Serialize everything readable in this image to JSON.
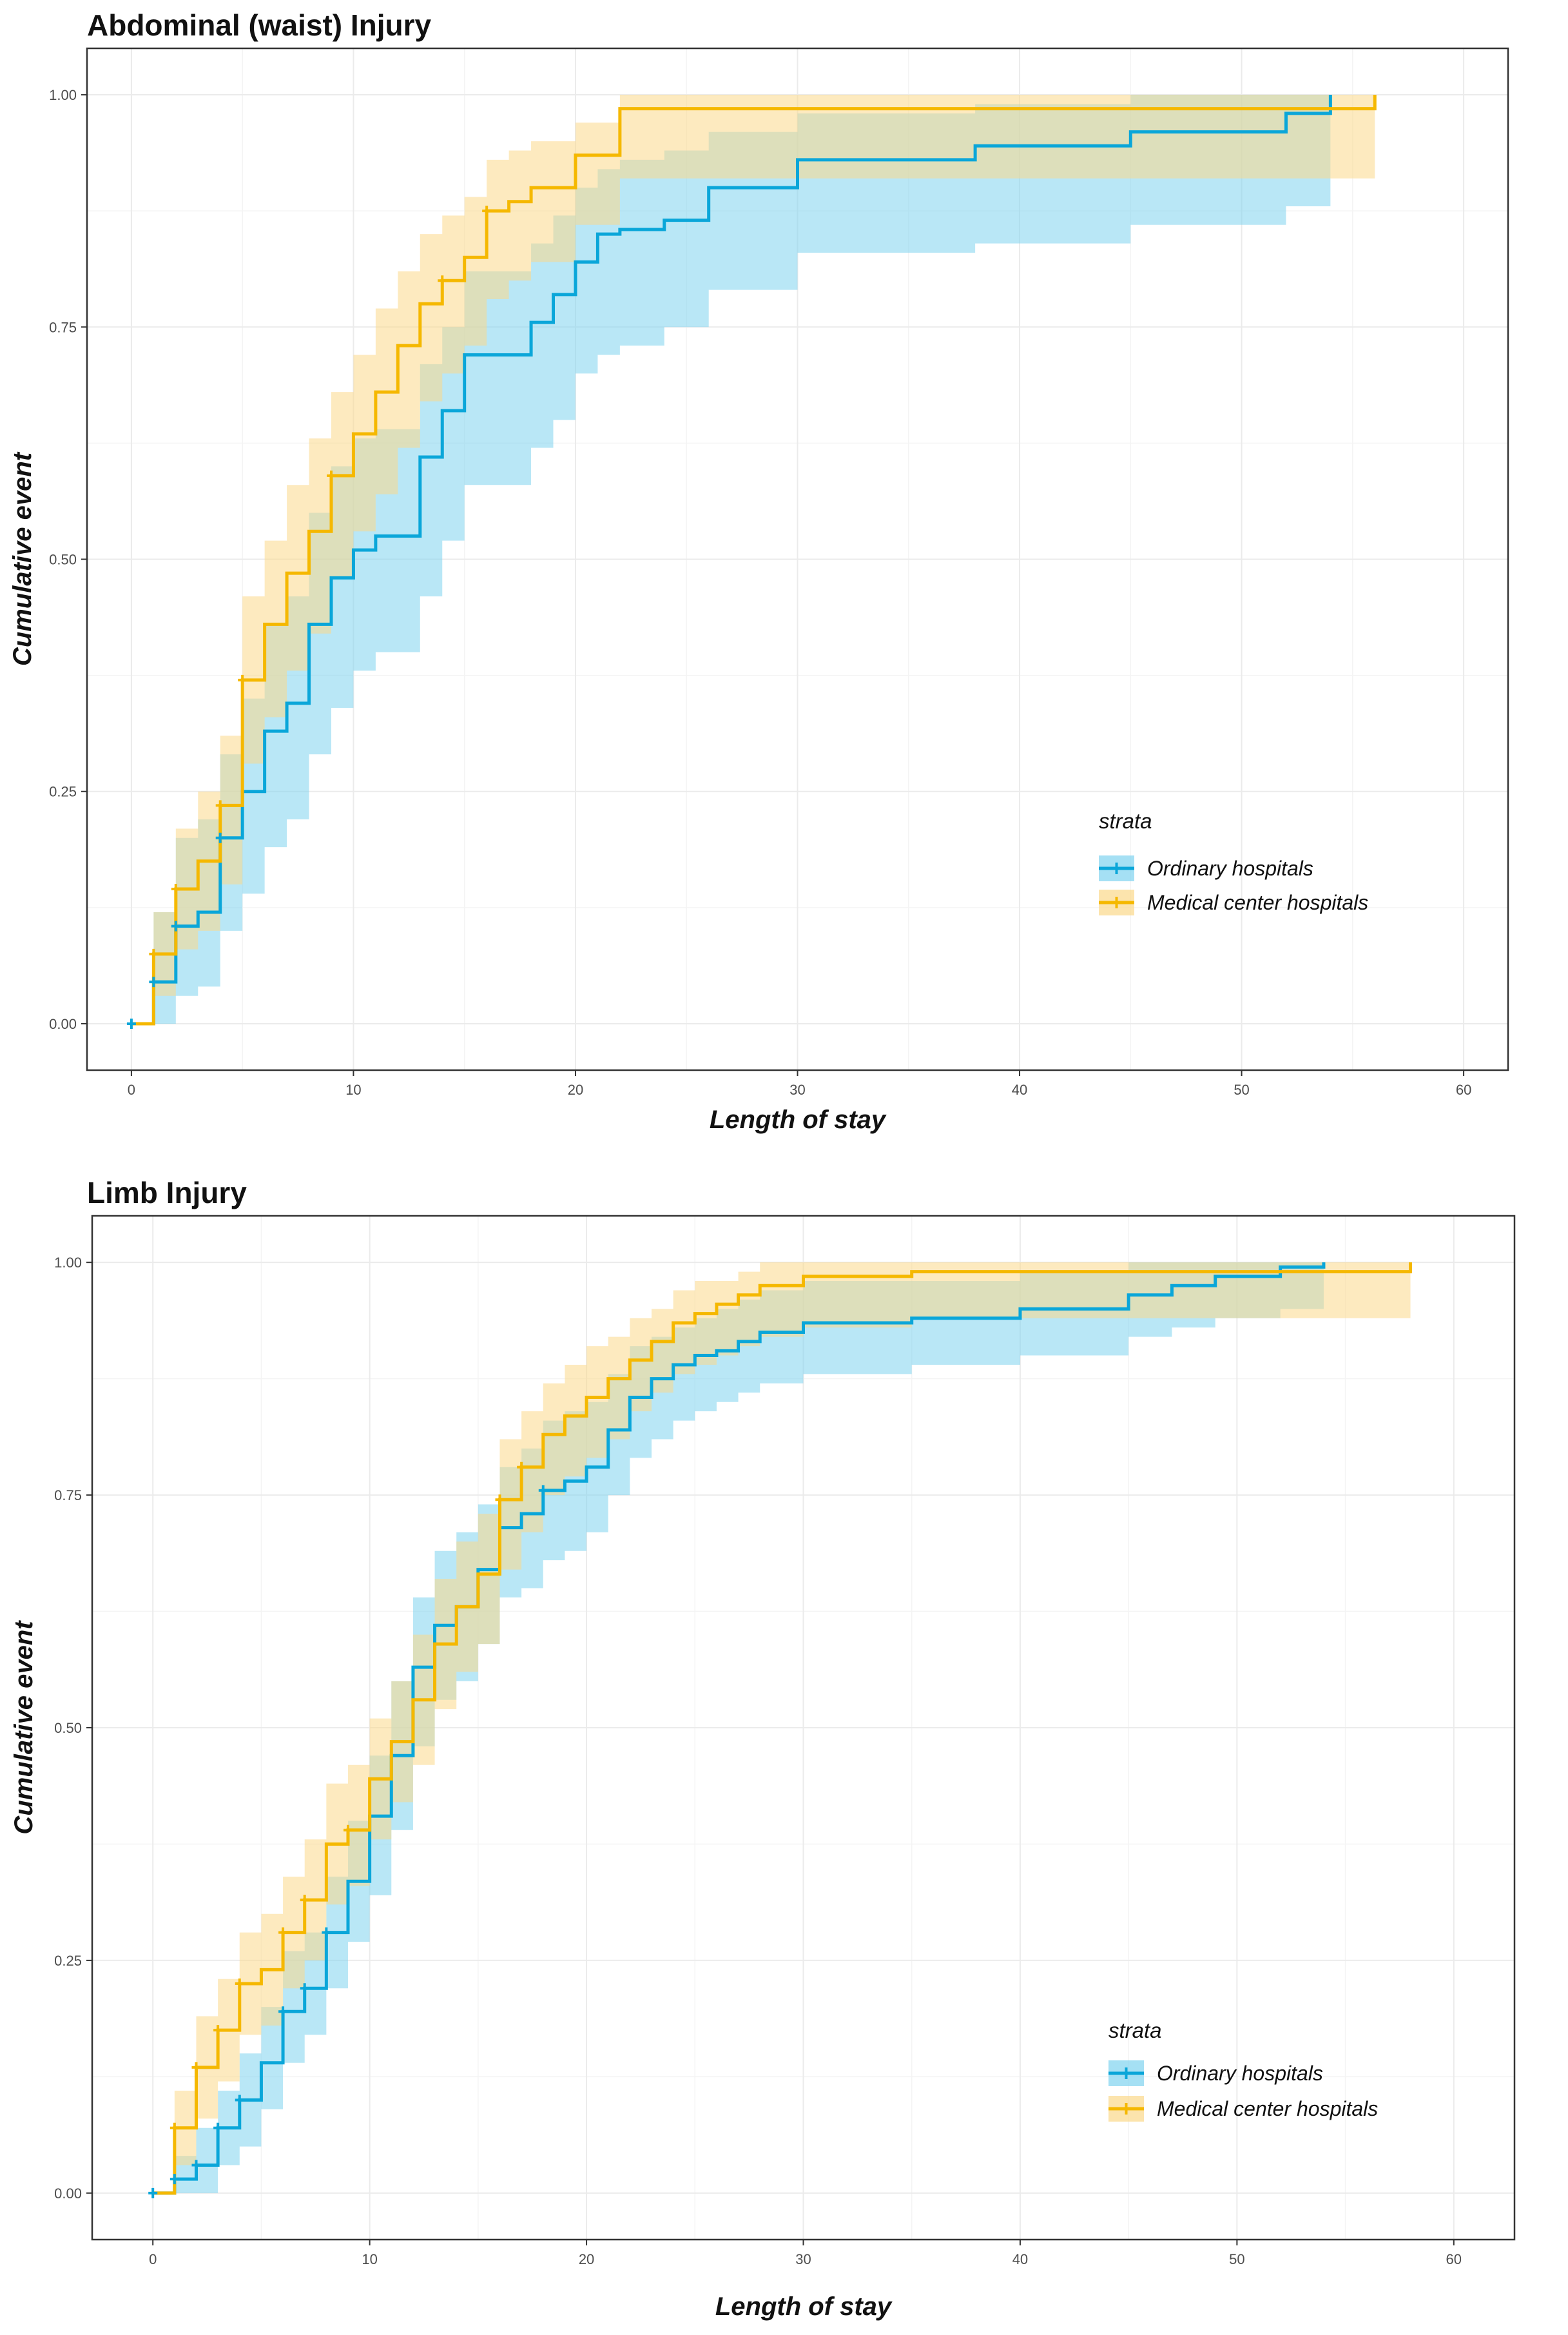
{
  "chart_data": [
    {
      "type": "line",
      "subtype": "step-cumulative-incidence",
      "title": "Abdominal (waist) Injury",
      "xlabel": "Length of stay",
      "ylabel": "Cumulative event",
      "xlim": [
        -2,
        62
      ],
      "ylim": [
        -0.05,
        1.05
      ],
      "xticks": [
        0,
        10,
        20,
        30,
        40,
        50,
        60
      ],
      "xtick_labels": [
        "0",
        "10",
        "20",
        "30",
        "40",
        "50",
        "60"
      ],
      "yticks": [
        0,
        0.25,
        0.5,
        0.75,
        1.0
      ],
      "ytick_labels": [
        "0.00",
        "0.25",
        "0.50",
        "0.75",
        "1.00"
      ],
      "grid": true,
      "legend": {
        "title": "strata",
        "position": "right"
      },
      "series": [
        {
          "name": "Ordinary hospitals",
          "color": "#0aa6d9",
          "band_color": "#7fd3ef",
          "x": [
            0,
            1,
            2,
            3,
            4,
            5,
            6,
            7,
            8,
            9,
            10,
            11,
            13,
            14,
            15,
            18,
            19,
            20,
            21,
            22,
            24,
            26,
            30,
            38,
            45,
            52,
            54
          ],
          "y": [
            0.0,
            0.045,
            0.105,
            0.12,
            0.2,
            0.25,
            0.315,
            0.345,
            0.43,
            0.48,
            0.51,
            0.525,
            0.61,
            0.66,
            0.72,
            0.755,
            0.785,
            0.82,
            0.85,
            0.855,
            0.865,
            0.9,
            0.93,
            0.945,
            0.96,
            0.98,
            1.0
          ],
          "lower": [
            0.0,
            0.0,
            0.03,
            0.04,
            0.1,
            0.14,
            0.19,
            0.22,
            0.29,
            0.34,
            0.38,
            0.4,
            0.46,
            0.52,
            0.58,
            0.62,
            0.65,
            0.7,
            0.72,
            0.73,
            0.75,
            0.79,
            0.83,
            0.84,
            0.86,
            0.88,
            0.9
          ],
          "upper": [
            0.0,
            0.12,
            0.2,
            0.22,
            0.29,
            0.35,
            0.43,
            0.46,
            0.55,
            0.6,
            0.63,
            0.64,
            0.71,
            0.75,
            0.81,
            0.84,
            0.87,
            0.9,
            0.92,
            0.93,
            0.94,
            0.96,
            0.98,
            0.99,
            1.0,
            1.0,
            1.0
          ],
          "censor_x": [
            0,
            1,
            2,
            4
          ]
        },
        {
          "name": "Medical center hospitals",
          "color": "#f5b800",
          "band_color": "#fbd98a",
          "x": [
            0,
            1,
            2,
            3,
            4,
            5,
            6,
            7,
            8,
            9,
            10,
            11,
            12,
            13,
            14,
            15,
            16,
            17,
            18,
            20,
            22,
            56
          ],
          "y": [
            0.0,
            0.075,
            0.145,
            0.175,
            0.235,
            0.37,
            0.43,
            0.485,
            0.53,
            0.59,
            0.635,
            0.68,
            0.73,
            0.775,
            0.8,
            0.825,
            0.875,
            0.885,
            0.9,
            0.935,
            0.985,
            1.0
          ],
          "lower": [
            0.0,
            0.03,
            0.08,
            0.1,
            0.15,
            0.28,
            0.33,
            0.38,
            0.42,
            0.48,
            0.53,
            0.57,
            0.62,
            0.67,
            0.7,
            0.73,
            0.78,
            0.8,
            0.82,
            0.86,
            0.91,
            0.91
          ],
          "upper": [
            0.0,
            0.12,
            0.21,
            0.25,
            0.31,
            0.46,
            0.52,
            0.58,
            0.63,
            0.68,
            0.72,
            0.77,
            0.81,
            0.85,
            0.87,
            0.89,
            0.93,
            0.94,
            0.95,
            0.97,
            1.0,
            1.0
          ],
          "censor_x": [
            1,
            2,
            4,
            5,
            9,
            14,
            16
          ]
        }
      ]
    },
    {
      "type": "line",
      "subtype": "step-cumulative-incidence",
      "title": "Limb Injury",
      "xlabel": "Length of stay",
      "ylabel": "Cumulative event",
      "xlim": [
        -2.8,
        62.8
      ],
      "ylim": [
        -0.05,
        1.05
      ],
      "xticks": [
        0,
        10,
        20,
        30,
        40,
        50,
        60
      ],
      "xtick_labels": [
        "0",
        "10",
        "20",
        "30",
        "40",
        "50",
        "60"
      ],
      "yticks": [
        0,
        0.25,
        0.5,
        0.75,
        1.0
      ],
      "ytick_labels": [
        "0.00",
        "0.25",
        "0.50",
        "0.75",
        "1.00"
      ],
      "grid": true,
      "legend": {
        "title": "strata",
        "position": "right"
      },
      "series": [
        {
          "name": "Ordinary hospitals",
          "color": "#0aa6d9",
          "band_color": "#7fd3ef",
          "x": [
            0,
            1,
            2,
            3,
            4,
            5,
            6,
            7,
            8,
            9,
            10,
            11,
            12,
            13,
            14,
            15,
            16,
            17,
            18,
            19,
            20,
            21,
            22,
            23,
            24,
            25,
            26,
            27,
            28,
            30,
            35,
            40,
            45,
            47,
            49,
            52,
            54
          ],
          "y": [
            0.0,
            0.015,
            0.03,
            0.07,
            0.1,
            0.14,
            0.195,
            0.22,
            0.28,
            0.335,
            0.405,
            0.47,
            0.565,
            0.61,
            0.63,
            0.67,
            0.715,
            0.73,
            0.755,
            0.765,
            0.78,
            0.82,
            0.855,
            0.875,
            0.89,
            0.9,
            0.905,
            0.915,
            0.925,
            0.935,
            0.94,
            0.95,
            0.965,
            0.975,
            0.985,
            0.995,
            1.0
          ],
          "lower": [
            0.0,
            0.0,
            0.0,
            0.03,
            0.05,
            0.09,
            0.14,
            0.17,
            0.22,
            0.27,
            0.32,
            0.39,
            0.48,
            0.53,
            0.55,
            0.59,
            0.64,
            0.65,
            0.68,
            0.69,
            0.71,
            0.75,
            0.79,
            0.81,
            0.83,
            0.84,
            0.85,
            0.86,
            0.87,
            0.88,
            0.89,
            0.9,
            0.92,
            0.93,
            0.94,
            0.95,
            0.95
          ],
          "upper": [
            0.0,
            0.04,
            0.07,
            0.11,
            0.15,
            0.2,
            0.26,
            0.28,
            0.34,
            0.4,
            0.47,
            0.55,
            0.64,
            0.69,
            0.71,
            0.74,
            0.78,
            0.8,
            0.83,
            0.84,
            0.85,
            0.88,
            0.91,
            0.92,
            0.93,
            0.94,
            0.95,
            0.96,
            0.97,
            0.98,
            0.98,
            0.99,
            1.0,
            1.0,
            1.0,
            1.0,
            1.0
          ],
          "censor_x": [
            0,
            1,
            2,
            3,
            4,
            6,
            7,
            8,
            18
          ]
        },
        {
          "name": "Medical center hospitals",
          "color": "#f5b800",
          "band_color": "#fbd98a",
          "x": [
            0,
            1,
            2,
            3,
            4,
            5,
            6,
            7,
            8,
            9,
            10,
            11,
            12,
            13,
            14,
            15,
            16,
            17,
            18,
            19,
            20,
            21,
            22,
            23,
            24,
            25,
            26,
            27,
            28,
            30,
            35,
            58
          ],
          "y": [
            0.0,
            0.07,
            0.135,
            0.175,
            0.225,
            0.24,
            0.28,
            0.315,
            0.375,
            0.39,
            0.445,
            0.485,
            0.53,
            0.59,
            0.63,
            0.665,
            0.745,
            0.78,
            0.815,
            0.835,
            0.855,
            0.875,
            0.895,
            0.915,
            0.935,
            0.945,
            0.955,
            0.965,
            0.975,
            0.985,
            0.99,
            1.0
          ],
          "lower": [
            0.0,
            0.03,
            0.08,
            0.12,
            0.17,
            0.18,
            0.22,
            0.25,
            0.31,
            0.33,
            0.38,
            0.42,
            0.46,
            0.52,
            0.56,
            0.59,
            0.67,
            0.71,
            0.75,
            0.77,
            0.79,
            0.81,
            0.84,
            0.86,
            0.88,
            0.89,
            0.9,
            0.91,
            0.92,
            0.93,
            0.94,
            0.95
          ],
          "upper": [
            0.0,
            0.11,
            0.19,
            0.23,
            0.28,
            0.3,
            0.34,
            0.38,
            0.44,
            0.46,
            0.51,
            0.55,
            0.6,
            0.66,
            0.7,
            0.73,
            0.81,
            0.84,
            0.87,
            0.89,
            0.91,
            0.92,
            0.94,
            0.95,
            0.97,
            0.98,
            0.98,
            0.99,
            1.0,
            1.0,
            1.0,
            1.0
          ],
          "censor_x": [
            1,
            2,
            3,
            4,
            6,
            7,
            9,
            16,
            17
          ]
        }
      ]
    }
  ]
}
